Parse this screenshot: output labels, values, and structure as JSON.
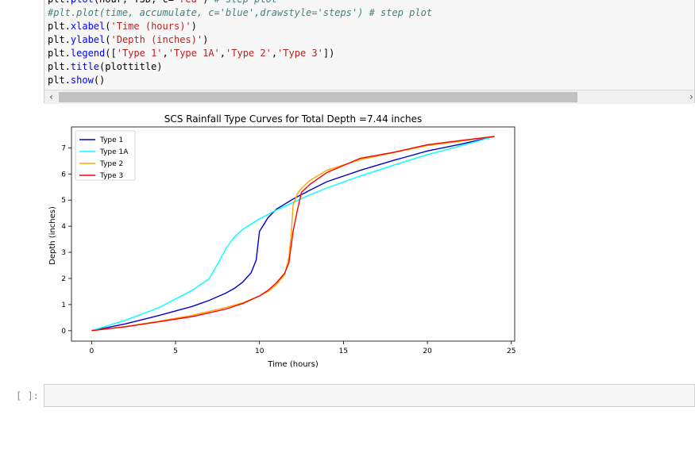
{
  "code_cell": {
    "lines": [
      {
        "parts": [
          {
            "t": "plt.",
            "c": ""
          },
          {
            "t": "plot",
            "c": "call"
          },
          {
            "t": "(hour, ",
            "c": ""
          },
          {
            "t": "T3D",
            "c": ""
          },
          {
            "t": ", c=",
            "c": ""
          },
          {
            "t": "'red'",
            "c": "str"
          },
          {
            "t": ") ",
            "c": ""
          },
          {
            "t": "# step plot",
            "c": "com"
          }
        ]
      },
      {
        "parts": [
          {
            "t": "#plt.plot(time, accumulate, c='blue',drawstyle='steps') # step plot",
            "c": "com"
          }
        ]
      },
      {
        "parts": [
          {
            "t": "plt.",
            "c": ""
          },
          {
            "t": "xlabel",
            "c": "call"
          },
          {
            "t": "(",
            "c": ""
          },
          {
            "t": "'Time (hours)'",
            "c": "str"
          },
          {
            "t": ")",
            "c": ""
          }
        ]
      },
      {
        "parts": [
          {
            "t": "plt.",
            "c": ""
          },
          {
            "t": "ylabel",
            "c": "call"
          },
          {
            "t": "(",
            "c": ""
          },
          {
            "t": "'Depth (inches)'",
            "c": "str"
          },
          {
            "t": ")",
            "c": ""
          }
        ]
      },
      {
        "parts": [
          {
            "t": "plt.",
            "c": ""
          },
          {
            "t": "legend",
            "c": "call"
          },
          {
            "t": "([",
            "c": ""
          },
          {
            "t": "'Type 1'",
            "c": "str"
          },
          {
            "t": ",",
            "c": ""
          },
          {
            "t": "'Type 1A'",
            "c": "str"
          },
          {
            "t": ",",
            "c": ""
          },
          {
            "t": "'Type 2'",
            "c": "str"
          },
          {
            "t": ",",
            "c": ""
          },
          {
            "t": "'Type 3'",
            "c": "str"
          },
          {
            "t": "])",
            "c": ""
          }
        ]
      },
      {
        "parts": [
          {
            "t": "plt.",
            "c": ""
          },
          {
            "t": "title",
            "c": "call"
          },
          {
            "t": "(plottitle)",
            "c": ""
          }
        ]
      },
      {
        "parts": [
          {
            "t": "plt.",
            "c": ""
          },
          {
            "t": "show",
            "c": "call"
          },
          {
            "t": "()",
            "c": ""
          }
        ]
      }
    ],
    "scroll_left_icon": "‹",
    "scroll_right_icon": "›"
  },
  "empty_cell": {
    "prompt": "[ ]:"
  },
  "chart_data": {
    "type": "line",
    "title": "SCS Rainfall Type Curves for Total Depth =7.44 inches",
    "xlabel": "Time (hours)",
    "ylabel": "Depth (inches)",
    "xlim": [
      -1.2,
      25.2
    ],
    "ylim": [
      -0.4,
      7.8
    ],
    "xticks": [
      0,
      5,
      10,
      15,
      20,
      25
    ],
    "yticks": [
      0,
      1,
      2,
      3,
      4,
      5,
      6,
      7
    ],
    "grid": false,
    "legend_position": "top-left",
    "series": [
      {
        "name": "Type 1",
        "color": "#0000cd",
        "x": [
          0,
          2,
          4,
          6,
          7,
          8,
          8.5,
          9,
          9.5,
          9.8,
          10,
          10.5,
          11,
          12,
          13,
          14,
          16,
          18,
          20,
          22,
          24
        ],
        "y": [
          0,
          0.26,
          0.58,
          0.93,
          1.16,
          1.44,
          1.62,
          1.86,
          2.22,
          2.7,
          3.8,
          4.32,
          4.65,
          5.04,
          5.38,
          5.7,
          6.14,
          6.52,
          6.88,
          7.14,
          7.44
        ]
      },
      {
        "name": "Type 1A",
        "color": "#00ffff",
        "x": [
          0,
          2,
          4,
          6,
          7,
          7.5,
          8,
          8.5,
          9,
          10,
          11,
          12,
          13,
          14,
          16,
          18,
          20,
          22,
          24
        ],
        "y": [
          0,
          0.4,
          0.88,
          1.55,
          1.99,
          2.55,
          3.15,
          3.58,
          3.88,
          4.28,
          4.62,
          4.91,
          5.2,
          5.46,
          5.92,
          6.34,
          6.74,
          7.08,
          7.44
        ]
      },
      {
        "name": "Type 2",
        "color": "#ffa500",
        "x": [
          0,
          2,
          4,
          6,
          8,
          9,
          10,
          10.5,
          11,
          11.5,
          11.75,
          11.9,
          12,
          12.25,
          12.5,
          13,
          14,
          16,
          18,
          20,
          22,
          24
        ],
        "y": [
          0,
          0.16,
          0.36,
          0.59,
          0.89,
          1.07,
          1.33,
          1.5,
          1.76,
          2.15,
          2.8,
          3.8,
          4.8,
          5.24,
          5.45,
          5.75,
          6.14,
          6.55,
          6.82,
          7.09,
          7.26,
          7.44
        ]
      },
      {
        "name": "Type 3",
        "color": "#ff0000",
        "x": [
          0,
          2,
          4,
          6,
          8,
          9,
          10,
          10.5,
          11,
          11.5,
          11.75,
          12,
          12.25,
          12.5,
          13,
          14,
          16,
          18,
          20,
          22,
          24
        ],
        "y": [
          0,
          0.15,
          0.34,
          0.54,
          0.83,
          1.04,
          1.33,
          1.54,
          1.83,
          2.2,
          2.6,
          3.8,
          4.6,
          5.3,
          5.6,
          6.05,
          6.6,
          6.83,
          7.12,
          7.28,
          7.44
        ]
      }
    ]
  }
}
